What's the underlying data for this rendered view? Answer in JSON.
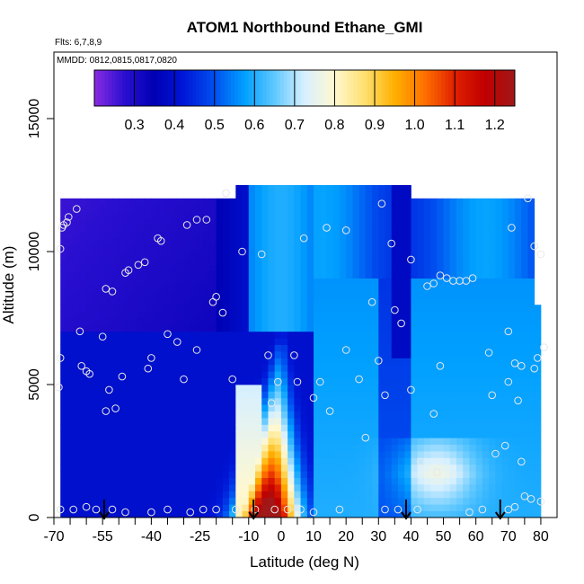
{
  "chart_data": {
    "type": "heatmap",
    "title": "ATOM1 Northbound Ethane_GMI",
    "flights_note": "Flts: 6,7,8,9",
    "dates_note": "MMDD: 0812,0815,0817,0820",
    "xlabel": "Latitude (deg N)",
    "ylabel": "Altitude (m)",
    "xlim": [
      -70,
      85
    ],
    "ylim": [
      0,
      17500
    ],
    "x_ticks": [
      -70,
      -55,
      -40,
      -25,
      -10,
      0,
      10,
      20,
      30,
      40,
      50,
      60,
      70,
      80
    ],
    "x_ticks_minor": [
      -65,
      -60,
      -50,
      -45,
      -35,
      -30,
      -20,
      -15,
      -5,
      5,
      15,
      25,
      35,
      45,
      55,
      65,
      75
    ],
    "y_ticks": [
      0,
      5000,
      10000,
      15000
    ],
    "colorbar": {
      "range": [
        0.2,
        1.25
      ],
      "ticks": [
        0.3,
        0.4,
        0.5,
        0.6,
        0.7,
        0.8,
        0.9,
        1.0,
        1.1,
        1.2
      ],
      "tick_labels": [
        "0.3",
        "0.4",
        "0.5",
        "0.6",
        "0.7",
        "0.8",
        "0.9",
        "1.0",
        "1.1",
        "1.2"
      ],
      "colors": [
        "#8a2be2",
        "#2a0fd0",
        "#0000b4",
        "#0018d8",
        "#0050f0",
        "#00a0ff",
        "#60c8ff",
        "#d8f0ff",
        "#fff8d0",
        "#ffe070",
        "#ffb000",
        "#ff7000",
        "#e02000",
        "#c00000",
        "#a01818"
      ]
    },
    "field": {
      "x_range": [
        -68,
        80
      ],
      "y_range": [
        0,
        12500
      ],
      "x_step": 2,
      "y_step": 250
    },
    "flight_markers_latitude": [
      -54.5,
      -8.5,
      38.5,
      67.5
    ],
    "points": [
      [
        -68,
        6000
      ],
      [
        -68.5,
        4900
      ],
      [
        -68,
        10100
      ],
      [
        -67.5,
        10900
      ],
      [
        -67,
        11000
      ],
      [
        -66,
        11100
      ],
      [
        -65.5,
        11300
      ],
      [
        -63,
        11600
      ],
      [
        -62,
        7000
      ],
      [
        -61.5,
        5700
      ],
      [
        -60,
        5500
      ],
      [
        -59,
        5400
      ],
      [
        -55,
        6800
      ],
      [
        -54,
        8600
      ],
      [
        -52,
        8500
      ],
      [
        -53,
        4800
      ],
      [
        -54,
        4000
      ],
      [
        -51,
        4100
      ],
      [
        -49,
        5300
      ],
      [
        -48,
        9200
      ],
      [
        -47,
        9300
      ],
      [
        -44,
        9500
      ],
      [
        -42,
        9600
      ],
      [
        -41,
        5600
      ],
      [
        -40,
        6000
      ],
      [
        -38,
        10500
      ],
      [
        -37,
        10400
      ],
      [
        -35,
        6900
      ],
      [
        -32,
        6600
      ],
      [
        -30,
        5200
      ],
      [
        -29,
        11000
      ],
      [
        -26,
        11200
      ],
      [
        -26,
        6300
      ],
      [
        -23,
        11200
      ],
      [
        -21,
        8100
      ],
      [
        -20,
        8300
      ],
      [
        -18,
        7700
      ],
      [
        -17,
        12200
      ],
      [
        -15,
        5200
      ],
      [
        -12,
        10000
      ],
      [
        -6,
        9900
      ],
      [
        -4,
        6100
      ],
      [
        -3,
        4300
      ],
      [
        -1,
        5100
      ],
      [
        7,
        10500
      ],
      [
        5,
        5100
      ],
      [
        4,
        6100
      ],
      [
        10,
        4500
      ],
      [
        14,
        10900
      ],
      [
        12,
        5100
      ],
      [
        15,
        4000
      ],
      [
        20,
        10800
      ],
      [
        20,
        6300
      ],
      [
        24,
        5200
      ],
      [
        26,
        3000
      ],
      [
        28,
        8100
      ],
      [
        31,
        11800
      ],
      [
        34,
        10300
      ],
      [
        30,
        5900
      ],
      [
        32,
        4600
      ],
      [
        35,
        7800
      ],
      [
        37,
        7300
      ],
      [
        40,
        9700
      ],
      [
        40,
        4800
      ],
      [
        43,
        2100
      ],
      [
        45,
        8700
      ],
      [
        47,
        3900
      ],
      [
        47,
        8800
      ],
      [
        48,
        1700
      ],
      [
        49,
        5700
      ],
      [
        49,
        9100
      ],
      [
        51,
        9000
      ],
      [
        53,
        8900
      ],
      [
        55,
        8900
      ],
      [
        57,
        8900
      ],
      [
        59,
        9000
      ],
      [
        64,
        6200
      ],
      [
        65,
        4600
      ],
      [
        66,
        2400
      ],
      [
        69,
        2700
      ],
      [
        70,
        5100
      ],
      [
        70,
        7000
      ],
      [
        71,
        10900
      ],
      [
        72,
        5800
      ],
      [
        73,
        4400
      ],
      [
        74,
        2100
      ],
      [
        74,
        5700
      ],
      [
        76,
        12000
      ],
      [
        77,
        700
      ],
      [
        78,
        5600
      ],
      [
        78,
        10200
      ],
      [
        79,
        6000
      ],
      [
        80,
        9900
      ],
      [
        81,
        6400
      ],
      [
        75,
        800
      ],
      [
        80,
        600
      ],
      [
        -68,
        300
      ],
      [
        -64,
        300
      ],
      [
        -60,
        400
      ],
      [
        -57,
        300
      ],
      [
        -52,
        300
      ],
      [
        -48,
        200
      ],
      [
        -40,
        200
      ],
      [
        -35,
        300
      ],
      [
        -28,
        200
      ],
      [
        -24,
        300
      ],
      [
        -20,
        300
      ],
      [
        -14,
        300
      ],
      [
        -8,
        300
      ],
      [
        -2,
        300
      ],
      [
        2,
        300
      ],
      [
        6,
        300
      ],
      [
        10,
        200
      ],
      [
        18,
        300
      ],
      [
        32,
        300
      ],
      [
        36,
        300
      ],
      [
        42,
        300
      ],
      [
        58,
        200
      ],
      [
        62,
        300
      ],
      [
        70,
        300
      ],
      [
        72,
        400
      ]
    ]
  }
}
